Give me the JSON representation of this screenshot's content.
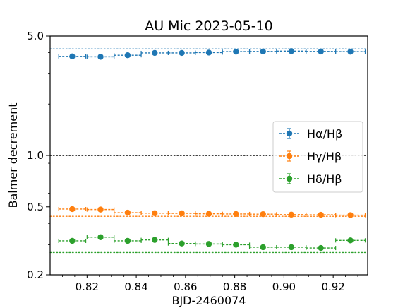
{
  "chart_data": {
    "type": "scatter",
    "title": "AU Mic 2023-05-10",
    "xlabel": "BJD-2460074",
    "ylabel": "Balmer decrement",
    "xlim": [
      0.805,
      0.934
    ],
    "ylim": [
      0.2,
      5.0
    ],
    "yscale": "log",
    "x_ticks": [
      0.82,
      0.84,
      0.86,
      0.88,
      0.9,
      0.92
    ],
    "x_tick_labels": [
      "0.82",
      "0.84",
      "0.86",
      "0.88",
      "0.90",
      "0.92"
    ],
    "y_ticks": [
      0.2,
      0.5,
      1.0,
      5.0
    ],
    "y_tick_labels": [
      "0.2",
      "0.5",
      "1.0",
      "5.0"
    ],
    "legend_position": "center-right",
    "reference_lines": [
      {
        "y": 1.0,
        "color": "#000000",
        "style": "dotted"
      },
      {
        "y": 4.2,
        "color": "#1f77b4",
        "style": "dotted"
      },
      {
        "y": 0.44,
        "color": "#ff7f0e",
        "style": "dotted"
      },
      {
        "y": 0.27,
        "color": "#2ca02c",
        "style": "dotted"
      }
    ],
    "series": [
      {
        "name": "Hα/Hβ",
        "color": "#1f77b4",
        "x": [
          0.814,
          0.8255,
          0.8365,
          0.8475,
          0.8585,
          0.8695,
          0.8805,
          0.8915,
          0.903,
          0.915,
          0.927
        ],
        "y": [
          3.8,
          3.78,
          3.86,
          3.98,
          3.98,
          4.0,
          4.05,
          4.06,
          4.08,
          4.06,
          4.05
        ],
        "xerr": [
          0.0055,
          0.0055,
          0.0055,
          0.0055,
          0.0055,
          0.0055,
          0.0055,
          0.0055,
          0.006,
          0.006,
          0.006
        ]
      },
      {
        "name": "Hγ/Hβ",
        "color": "#ff7f0e",
        "x": [
          0.814,
          0.8255,
          0.8365,
          0.8475,
          0.8585,
          0.8695,
          0.8805,
          0.8915,
          0.903,
          0.915,
          0.927
        ],
        "y": [
          0.485,
          0.482,
          0.462,
          0.459,
          0.458,
          0.455,
          0.454,
          0.453,
          0.45,
          0.449,
          0.447
        ],
        "xerr": [
          0.0055,
          0.0055,
          0.0055,
          0.0055,
          0.0055,
          0.0055,
          0.0055,
          0.0055,
          0.006,
          0.006,
          0.006
        ]
      },
      {
        "name": "Hδ/Hβ",
        "color": "#2ca02c",
        "x": [
          0.814,
          0.8255,
          0.8365,
          0.8475,
          0.8585,
          0.8695,
          0.8805,
          0.8915,
          0.903,
          0.915,
          0.927
        ],
        "y": [
          0.316,
          0.332,
          0.316,
          0.32,
          0.305,
          0.303,
          0.3,
          0.29,
          0.29,
          0.287,
          0.318
        ],
        "xerr": [
          0.0055,
          0.0055,
          0.0055,
          0.0055,
          0.0055,
          0.0055,
          0.0055,
          0.0055,
          0.006,
          0.006,
          0.006
        ]
      }
    ]
  }
}
